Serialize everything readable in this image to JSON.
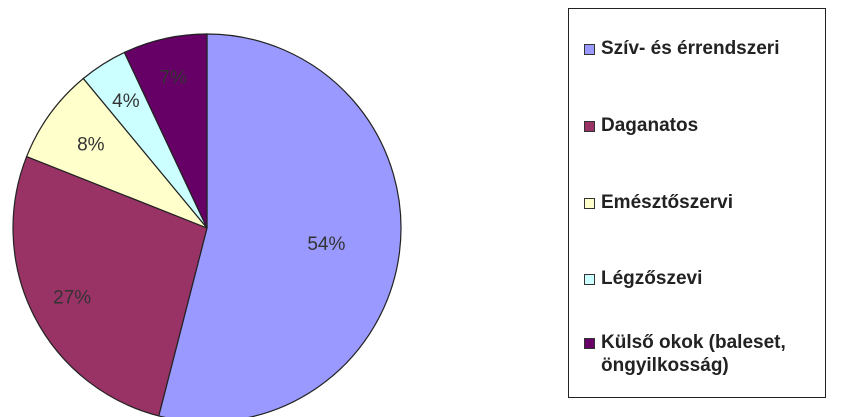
{
  "chart_data": {
    "type": "pie",
    "categories": [
      "Szív- és érrendszeri",
      "Daganatos",
      "Emésztőszervi",
      "Légzőszevi",
      "Külső okok (baleset, öngyilkosság)"
    ],
    "values": [
      54,
      27,
      8,
      4,
      7
    ],
    "value_labels": [
      "54%",
      "27%",
      "8%",
      "4%",
      "7%"
    ],
    "colors": [
      "#9999FF",
      "#993366",
      "#FFFFCC",
      "#CCFFFF",
      "#660066"
    ],
    "start_angle_deg": 0,
    "direction": "clockwise",
    "legend_position": "right",
    "title": ""
  },
  "legend": {
    "items": [
      {
        "label": "Szív- és érrendszeri",
        "color": "#9999FF"
      },
      {
        "label": "Daganatos",
        "color": "#993366"
      },
      {
        "label": "Emésztőszervi",
        "color": "#FFFFCC"
      },
      {
        "label": "Légzőszevi",
        "color": "#CCFFFF"
      },
      {
        "label": "Külső okok (baleset, öngyilkosság)",
        "color": "#660066"
      }
    ]
  }
}
